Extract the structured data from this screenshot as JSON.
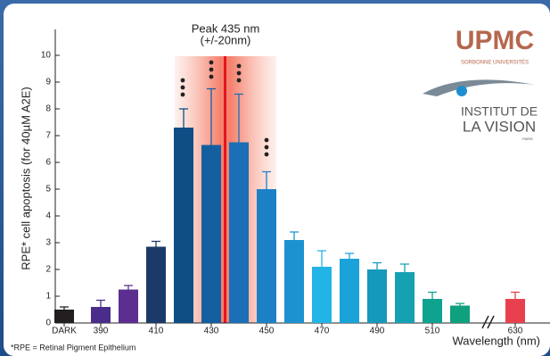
{
  "chart_data": {
    "type": "bar",
    "ylabel": "RPE* cell apoptosis (for 40µM A2E)",
    "xlabel": "Wavelength (nm)",
    "annotation": [
      "Peak 435 nm",
      "(+/-20nm)"
    ],
    "footnote": "*RPE = Retinal Pigment Epithelium",
    "logos": {
      "upmc": "UPMC",
      "sorbonne": "SORBONNE UNIVERSITÉS",
      "institut": "INSTITUT DE",
      "vision": "LA VISION",
      "paris": "PARIS"
    },
    "categories": [
      "DARK",
      "390",
      null,
      "410",
      null,
      "430",
      null,
      "450",
      null,
      "470",
      null,
      "490",
      null,
      "510",
      null,
      "630"
    ],
    "values": [
      0.5,
      0.6,
      1.25,
      2.85,
      7.3,
      6.65,
      6.75,
      5.0,
      3.1,
      2.1,
      2.4,
      2.0,
      1.9,
      0.9,
      0.65,
      0.9
    ],
    "errors": [
      0.1,
      0.25,
      0.15,
      0.2,
      0.7,
      2.1,
      1.8,
      0.65,
      0.3,
      0.6,
      0.2,
      0.25,
      0.3,
      0.25,
      0.08,
      0.25
    ],
    "colors": [
      "#231f20",
      "#4a2d8a",
      "#5b2e90",
      "#1b3a6a",
      "#0f4e84",
      "#135f9f",
      "#1a6fb6",
      "#1c80c7",
      "#1c92d0",
      "#22b4e4",
      "#1aa2d9",
      "#1698bd",
      "#16a1b3",
      "#0ea28f",
      "#0fa07d",
      "#e8404f"
    ],
    "ylim": [
      0,
      11
    ],
    "yticks": [
      0,
      1,
      2,
      3,
      4,
      5,
      6,
      7,
      8,
      9,
      10
    ]
  }
}
